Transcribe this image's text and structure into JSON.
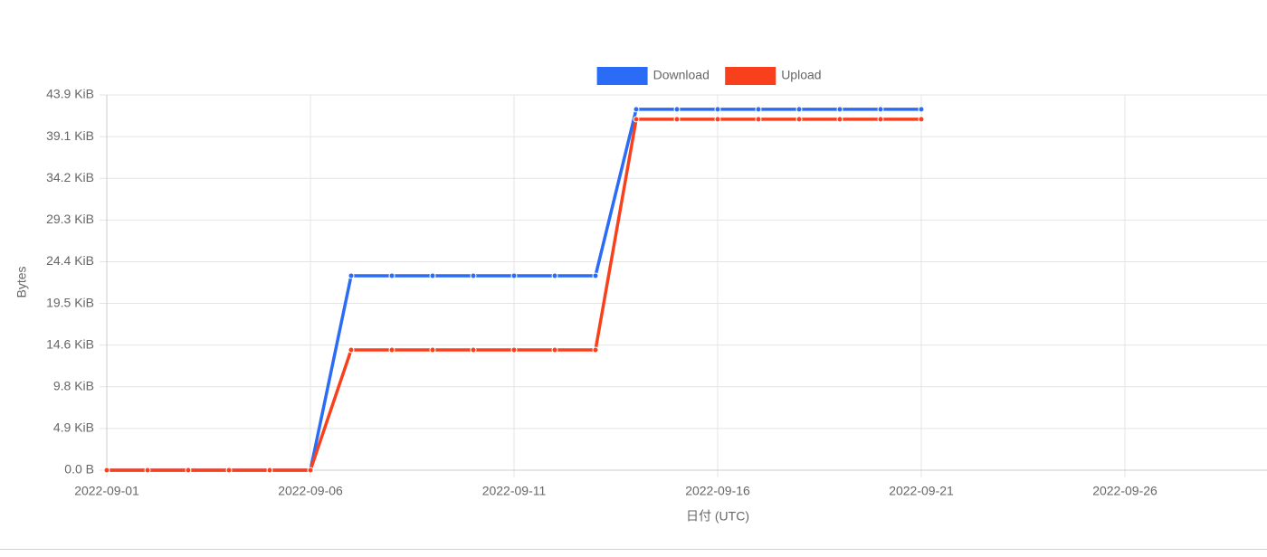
{
  "chart_data": {
    "type": "line",
    "x_label": "日付 (UTC)",
    "y_label": "Bytes",
    "x": [
      "2022-09-01",
      "2022-09-02",
      "2022-09-03",
      "2022-09-04",
      "2022-09-05",
      "2022-09-06",
      "2022-09-07",
      "2022-09-08",
      "2022-09-09",
      "2022-09-10",
      "2022-09-11",
      "2022-09-12",
      "2022-09-13",
      "2022-09-14",
      "2022-09-15",
      "2022-09-16",
      "2022-09-17",
      "2022-09-18",
      "2022-09-19",
      "2022-09-20",
      "2022-09-21"
    ],
    "series": [
      {
        "name": "Download",
        "color": "#2a6cf6",
        "values": [
          0,
          0,
          0,
          0,
          0,
          0,
          23320,
          23320,
          23320,
          23320,
          23320,
          23320,
          23320,
          43275,
          43275,
          43275,
          43275,
          43275,
          43275,
          43275,
          43275
        ]
      },
      {
        "name": "Upload",
        "color": "#f8401c",
        "values": [
          0,
          0,
          0,
          0,
          0,
          0,
          14425,
          14425,
          14425,
          14425,
          14425,
          14425,
          14425,
          42083,
          42083,
          42083,
          42083,
          42083,
          42083,
          42083,
          42083
        ]
      }
    ],
    "xlim": [
      "2022-09-01",
      "2022-09-29"
    ],
    "xticks": [
      "2022-09-01",
      "2022-09-06",
      "2022-09-11",
      "2022-09-16",
      "2022-09-21",
      "2022-09-26"
    ],
    "ylim": [
      0,
      45000
    ],
    "yticks": [
      {
        "value": 0,
        "label": "0.0 B"
      },
      {
        "value": 5000,
        "label": "4.9 KiB"
      },
      {
        "value": 10000,
        "label": "9.8 KiB"
      },
      {
        "value": 15000,
        "label": "14.6 KiB"
      },
      {
        "value": 20000,
        "label": "19.5 KiB"
      },
      {
        "value": 25000,
        "label": "24.4 KiB"
      },
      {
        "value": 30000,
        "label": "29.3 KiB"
      },
      {
        "value": 35000,
        "label": "34.2 KiB"
      },
      {
        "value": 40000,
        "label": "39.1 KiB"
      },
      {
        "value": 45000,
        "label": "43.9 KiB"
      }
    ],
    "grid": true,
    "legend": "top"
  }
}
